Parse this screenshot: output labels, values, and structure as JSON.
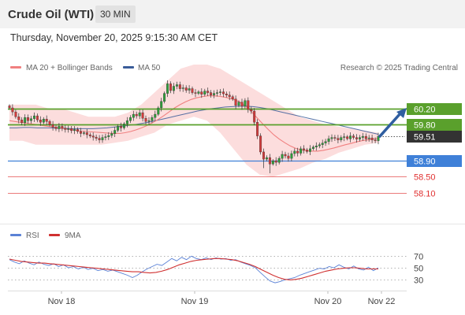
{
  "header": {
    "title": "Crude Oil (WTI)",
    "timeframe": "30 MIN"
  },
  "subtitle": "Thursday, November 20, 2025 9:15:30 AM CET",
  "legend": {
    "ma20": "MA 20 + Bollinger Bands",
    "ma50": "MA 50",
    "credit": "Research © 2025 Trading Central",
    "rsi": "RSI",
    "rsi_ma": "9MA"
  },
  "colors": {
    "ma20": "#f08080",
    "ma50": "#3a5c99",
    "bollinger_fill": "#fbd4d4",
    "resistance": "#5aa02c",
    "pivot": "#3f80d8",
    "support": "#e03030",
    "last_price": "#333333",
    "rsi": "#5b82d6",
    "rsi_ma": "#d03030"
  },
  "chart_data": [
    {
      "type": "candlestick",
      "title": "Crude Oil (WTI)",
      "ylim": [
        57.9,
        60.75
      ],
      "price_levels": [
        {
          "label": "60.20",
          "value": 60.2,
          "kind": "resistance"
        },
        {
          "label": "59.80",
          "value": 59.8,
          "kind": "resistance"
        },
        {
          "label": "59.51",
          "value": 59.51,
          "kind": "last"
        },
        {
          "label": "58.90",
          "value": 58.9,
          "kind": "pivot"
        },
        {
          "label": "58.50",
          "value": 58.5,
          "kind": "support"
        },
        {
          "label": "58.10",
          "value": 58.1,
          "kind": "support"
        }
      ],
      "x_ticks": [
        "Nov 18",
        "Nov 19",
        "Nov 20",
        "Nov 22"
      ],
      "close": [
        60.22,
        60.12,
        60.0,
        59.92,
        59.85,
        59.98,
        59.9,
        59.95,
        60.02,
        59.92,
        59.86,
        59.94,
        59.88,
        59.8,
        59.74,
        59.7,
        59.76,
        59.71,
        59.68,
        59.7,
        59.65,
        59.68,
        59.63,
        59.58,
        59.6,
        59.55,
        59.52,
        59.49,
        59.46,
        59.42,
        59.48,
        59.5,
        59.53,
        59.58,
        59.66,
        59.76,
        59.72,
        59.82,
        59.9,
        59.98,
        60.06,
        60.02,
        60.1,
        59.96,
        59.88,
        59.9,
        59.98,
        60.06,
        60.22,
        60.38,
        60.58,
        60.82,
        60.65,
        60.76,
        60.8,
        60.7,
        60.72,
        60.66,
        60.7,
        60.6,
        60.58,
        60.62,
        60.56,
        60.64,
        60.6,
        60.54,
        60.58,
        60.6,
        60.62,
        60.57,
        60.54,
        60.5,
        60.44,
        60.28,
        60.36,
        60.26,
        60.4,
        60.18,
        60.14,
        59.86,
        59.52,
        59.12,
        58.94,
        58.98,
        58.82,
        58.9,
        58.86,
        58.96,
        59.06,
        59.02,
        58.96,
        59.08,
        59.14,
        59.09,
        59.2,
        59.17,
        59.13,
        59.2,
        59.24,
        59.27,
        59.3,
        59.34,
        59.38,
        59.45,
        59.48,
        59.46,
        59.42,
        59.48,
        59.5,
        59.45,
        59.52,
        59.48,
        59.44,
        59.48,
        59.51,
        59.45,
        59.47,
        59.42,
        59.4,
        59.51
      ],
      "ma20": [
        59.9,
        59.88,
        59.86,
        59.84,
        59.82,
        59.8,
        59.78,
        59.76,
        59.74,
        59.72,
        59.7,
        59.68,
        59.66,
        59.64,
        59.63,
        59.62,
        59.61,
        59.6,
        59.59,
        59.58,
        59.58,
        59.6,
        59.63,
        59.67,
        59.72,
        59.78,
        59.85,
        59.93,
        60.02,
        60.12,
        60.22,
        60.3,
        60.37,
        60.43,
        60.47,
        60.5,
        60.52,
        60.52,
        60.51,
        60.49,
        60.46,
        60.42,
        60.35,
        60.25,
        60.12,
        59.97,
        59.82,
        59.68,
        59.55,
        59.44,
        59.35,
        59.27,
        59.21,
        59.17,
        59.15,
        59.14,
        59.14,
        59.16,
        59.19,
        59.22,
        59.26,
        59.3,
        59.33,
        59.37,
        59.4,
        59.42,
        59.44,
        59.46
      ],
      "ma50": [
        59.72,
        59.72,
        59.73,
        59.73,
        59.72,
        59.72,
        59.72,
        59.71,
        59.71,
        59.7,
        59.7,
        59.7,
        59.7,
        59.71,
        59.72,
        59.74,
        59.76,
        59.78,
        59.8,
        59.83,
        59.86,
        59.9,
        59.94,
        59.98,
        60.02,
        60.06,
        60.1,
        60.14,
        60.17,
        60.2,
        60.22,
        60.24,
        60.25,
        60.26,
        60.26,
        60.25,
        60.23,
        60.2,
        60.16,
        60.12,
        60.08,
        60.04,
        60.0,
        59.96,
        59.92,
        59.88,
        59.84,
        59.8,
        59.76,
        59.72,
        59.68,
        59.64,
        59.6,
        59.56
      ],
      "bollinger_upper": [
        60.3,
        60.3,
        60.3,
        60.2,
        60.2,
        60.1,
        60.0,
        60.0,
        60.0,
        60.1,
        60.3,
        60.6,
        60.9,
        61.2,
        61.3,
        61.3,
        61.2,
        61.0,
        60.8,
        60.6,
        60.4,
        60.2,
        60.0,
        59.9,
        59.8,
        59.75,
        59.7,
        59.65,
        59.6
      ],
      "bollinger_lower": [
        59.4,
        59.4,
        59.3,
        59.3,
        59.3,
        59.3,
        59.3,
        59.3,
        59.35,
        59.4,
        59.5,
        59.6,
        59.8,
        59.9,
        60.0,
        59.9,
        59.6,
        59.2,
        58.8,
        58.55,
        58.5,
        58.6,
        58.7,
        58.85,
        58.95,
        59.1,
        59.2,
        59.3,
        59.35
      ],
      "projection": {
        "from": 59.51,
        "to": 60.2
      }
    },
    {
      "type": "line",
      "title": "RSI",
      "ylim": [
        20,
        80
      ],
      "y_ticks": [
        70,
        50,
        30
      ],
      "series": [
        {
          "name": "RSI",
          "values": [
            64,
            60,
            57,
            62,
            58,
            55,
            60,
            56,
            54,
            57,
            52,
            55,
            50,
            52,
            48,
            51,
            47,
            49,
            45,
            47,
            44,
            46,
            43,
            40,
            37,
            33,
            37,
            43,
            48,
            52,
            56,
            54,
            60,
            66,
            62,
            68,
            64,
            70,
            66,
            64,
            67,
            64,
            67,
            65,
            66,
            63,
            64,
            60,
            57,
            54,
            50,
            42,
            34,
            27,
            24,
            26,
            29,
            31,
            33,
            37,
            40,
            43,
            46,
            49,
            48,
            52,
            50,
            55,
            51,
            48,
            53,
            48,
            46,
            51,
            45,
            50
          ]
        },
        {
          "name": "9MA",
          "values": [
            65,
            63,
            61,
            60,
            59,
            58,
            58,
            57,
            56,
            55,
            54,
            53,
            52,
            51,
            50,
            49,
            48,
            47,
            46,
            45,
            44,
            43,
            43,
            42,
            41,
            42,
            44,
            47,
            51,
            55,
            58,
            61,
            63,
            64,
            65,
            66,
            66,
            65,
            64,
            62,
            59,
            56,
            52,
            47,
            42,
            37,
            33,
            30,
            29,
            30,
            32,
            35,
            38,
            41,
            44,
            46,
            48,
            49,
            50,
            50,
            49,
            48,
            48,
            48
          ]
        }
      ]
    }
  ]
}
